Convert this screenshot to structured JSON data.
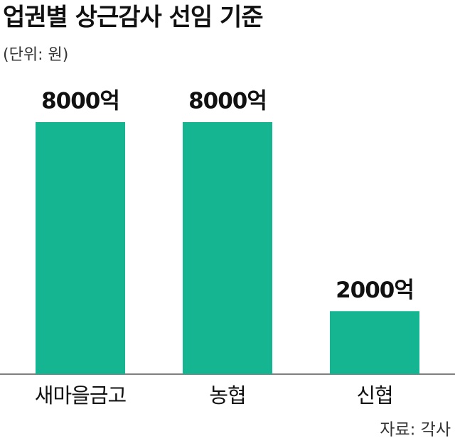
{
  "chart_data": {
    "type": "bar",
    "title": "업권별 상근감사 선임 기준",
    "subtitle": "(단위: 원)",
    "categories": [
      "새마을금고",
      "농협",
      "신협"
    ],
    "values": [
      8000,
      8000,
      2000
    ],
    "value_labels": [
      "8000억",
      "8000억",
      "2000억"
    ],
    "color": "#16b592",
    "source": "자료: 각사"
  }
}
